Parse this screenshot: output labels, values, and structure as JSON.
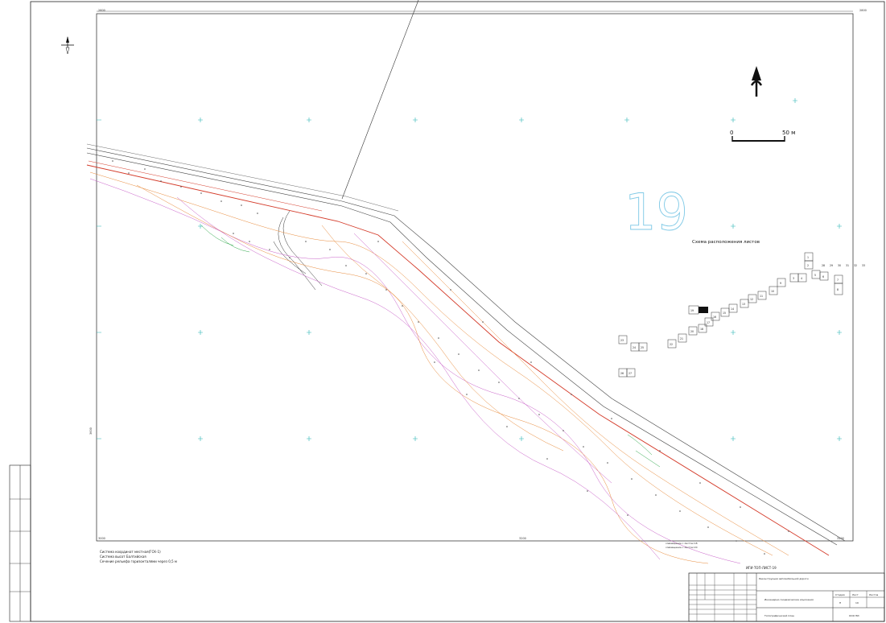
{
  "sheet_number": "19",
  "scale_bar": {
    "zero_label": "0",
    "end_label": "50 м"
  },
  "inset_title": "Схема расположения листов",
  "inset_sheets": [
    "1",
    "2",
    "3",
    "4",
    "5",
    "6",
    "7",
    "8",
    "9",
    "10",
    "11",
    "12",
    "13",
    "14",
    "15",
    "16",
    "17",
    "18",
    "19",
    "20",
    "21",
    "22",
    "23",
    "24",
    "25",
    "26",
    "27",
    "28",
    "29",
    "30",
    "31",
    "32",
    "33"
  ],
  "notes": [
    "Система координат местная(ГСК-1)",
    "Система высот Балтийская",
    "Сечение рельефа горизонталями через 0,5 м"
  ],
  "sheet_refs": [
    "совмещение с листом 18",
    "совмещение с листом 20"
  ],
  "stamp": {
    "code": "ИГИ-ТОП-ЛИСТ-19",
    "project_desc": "Реконструкция автомобильной дороги",
    "drawing_title": "Инженерно-геодезические изыскания",
    "drawing_name": "Топографический план",
    "stage_label": "Стадия",
    "sheet_label": "Лист",
    "sheets_label": "Листов",
    "stage": "П",
    "sheet": "19",
    "org": "ООО ПИ"
  },
  "grid_labels": [
    "2600",
    "2800",
    "3000",
    "3200",
    "3400",
    "3600"
  ],
  "colors": {
    "road": "#d43b2a",
    "grid": "#28b4b4",
    "contour_orange": "#e88a3a",
    "contour_magenta": "#c85fc8"
  }
}
